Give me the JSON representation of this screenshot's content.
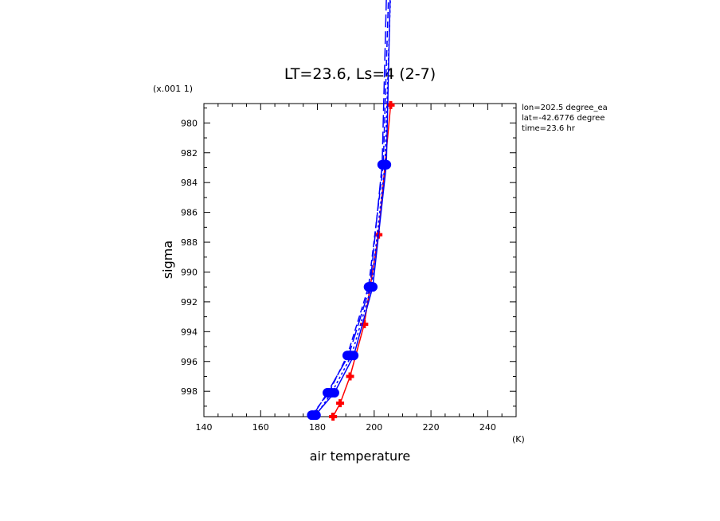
{
  "chart_data": {
    "type": "line",
    "title": "LT=23.6, Ls=4 (2-7)",
    "xlabel": "air temperature",
    "xunit": "(K)",
    "ylabel": "sigma",
    "yscale_note": "(x.001 1)",
    "xlim": [
      140,
      250
    ],
    "ylim_display": [
      999.7,
      978.7
    ],
    "x_ticks": [
      140,
      160,
      180,
      200,
      220,
      240
    ],
    "y_ticks": [
      980,
      982,
      984,
      986,
      988,
      990,
      992,
      994,
      996,
      998
    ],
    "grid": false,
    "annotations": [
      "lon=202.5 degree_ea",
      "lat=-42.6776 degree",
      "time=23.6 hr"
    ],
    "series": [
      {
        "color": "#ff0000",
        "style": "solid",
        "marker": "plus",
        "points": [
          [
            185.5,
            999.7
          ],
          [
            188.0,
            998.8
          ],
          [
            191.5,
            997.0
          ],
          [
            196.5,
            993.5
          ],
          [
            201.5,
            987.5
          ],
          [
            205.8,
            978.8
          ]
        ]
      },
      {
        "color": "#0000ff",
        "style": "solid",
        "marker": "circle",
        "points": [
          [
            179.2,
            999.6
          ],
          [
            186.0,
            998.1
          ],
          [
            192.8,
            995.6
          ],
          [
            199.5,
            991.0
          ],
          [
            204.3,
            982.8
          ],
          [
            205.8,
            970.0
          ]
        ]
      },
      {
        "color": "#0000ff",
        "style": "dash",
        "marker": "circle",
        "points": [
          [
            178.0,
            999.6
          ],
          [
            184.0,
            998.1
          ],
          [
            190.5,
            995.6
          ],
          [
            198.0,
            991.0
          ],
          [
            203.2,
            982.8
          ],
          [
            205.3,
            970.0
          ]
        ]
      },
      {
        "color": "#0000ff",
        "style": "longdash",
        "marker": "circle",
        "points": [
          [
            178.5,
            999.6
          ],
          [
            183.5,
            998.1
          ],
          [
            191.0,
            995.6
          ],
          [
            198.5,
            991.0
          ],
          [
            202.8,
            982.8
          ],
          [
            204.5,
            970.0
          ]
        ]
      },
      {
        "color": "#0000ff",
        "style": "dot",
        "marker": "circle",
        "points": [
          [
            179.5,
            999.6
          ],
          [
            185.0,
            998.1
          ],
          [
            192.0,
            995.6
          ],
          [
            199.0,
            991.0
          ],
          [
            203.8,
            982.8
          ],
          [
            206.0,
            970.0
          ]
        ]
      }
    ]
  }
}
